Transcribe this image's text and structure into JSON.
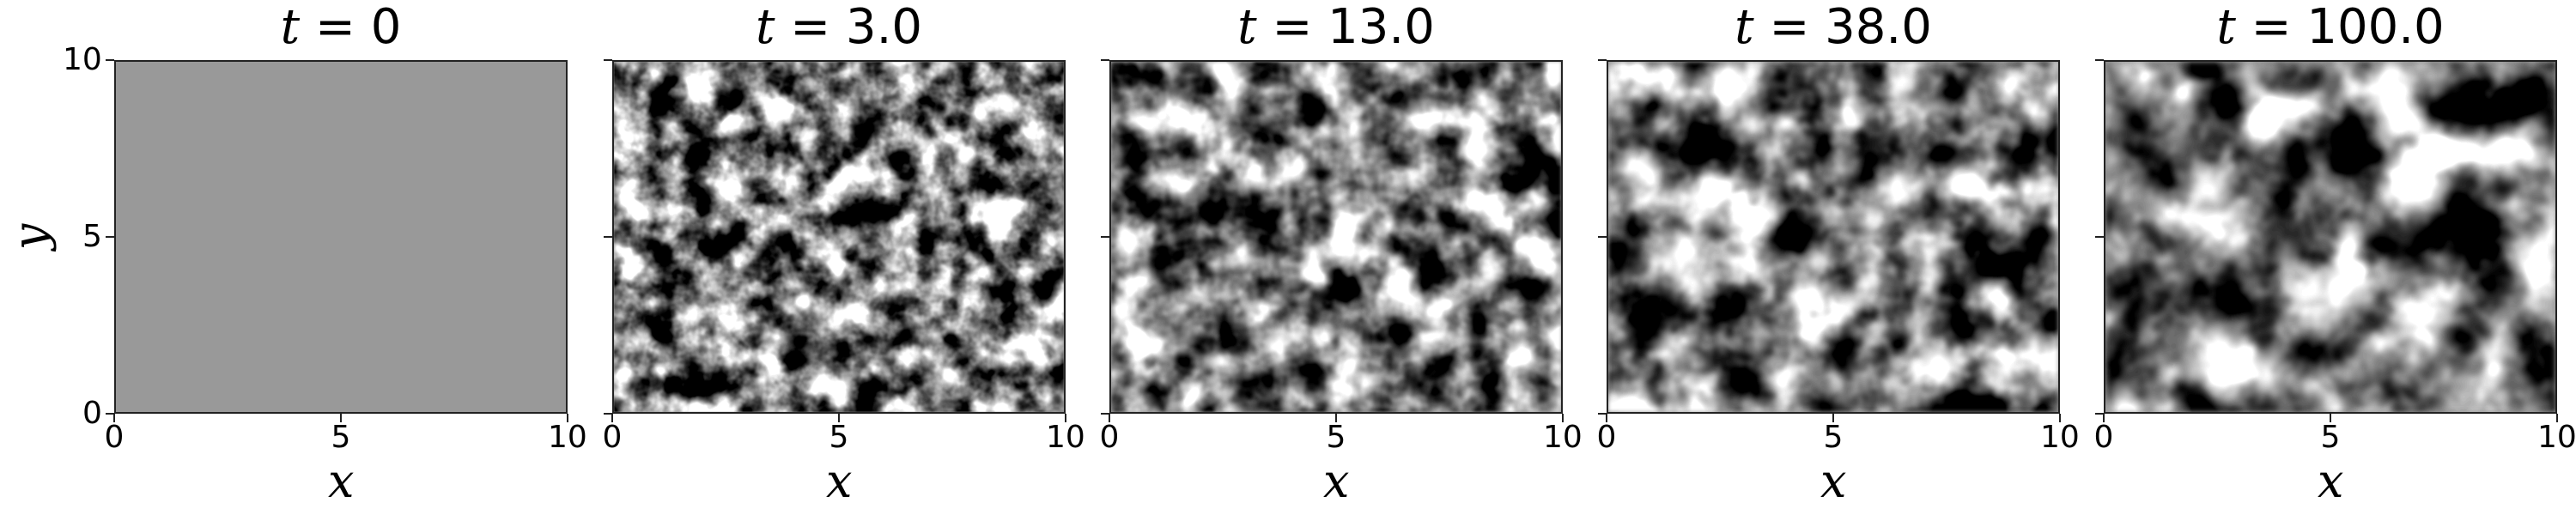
{
  "chart_data": [
    {
      "type": "heatmap",
      "title": {
        "prefix": "t",
        "text": " = 0"
      },
      "t": 0,
      "xlabel": "x",
      "ylabel": "y",
      "xlim": [
        0,
        10
      ],
      "ylim": [
        0,
        10
      ],
      "xticks": [
        "0",
        "5",
        "10"
      ],
      "yticks": [
        "0",
        "5",
        "10"
      ],
      "colormap": "gray",
      "field": "uniform",
      "uniform_color": "#999999"
    },
    {
      "type": "heatmap",
      "title": {
        "prefix": "t",
        "text": " = 3.0"
      },
      "t": 3.0,
      "xlabel": "x",
      "xlim": [
        0,
        10
      ],
      "ylim": [
        0,
        10
      ],
      "xticks": [
        "0",
        "5",
        "10"
      ],
      "colormap": "gray",
      "field": "fine-grained mottled noise"
    },
    {
      "type": "heatmap",
      "title": {
        "prefix": "t",
        "text": " = 13.0"
      },
      "t": 13.0,
      "xlabel": "x",
      "xlim": [
        0,
        10
      ],
      "ylim": [
        0,
        10
      ],
      "xticks": [
        "0",
        "5",
        "10"
      ],
      "colormap": "gray",
      "field": "coarsening domains"
    },
    {
      "type": "heatmap",
      "title": {
        "prefix": "t",
        "text": " = 38.0"
      },
      "t": 38.0,
      "xlabel": "x",
      "xlim": [
        0,
        10
      ],
      "ylim": [
        0,
        10
      ],
      "xticks": [
        "0",
        "5",
        "10"
      ],
      "colormap": "gray",
      "field": "larger domains"
    },
    {
      "type": "heatmap",
      "title": {
        "prefix": "t",
        "text": " = 100.0"
      },
      "t": 100.0,
      "xlabel": "x",
      "xlim": [
        0,
        10
      ],
      "ylim": [
        0,
        10
      ],
      "xticks": [
        "0",
        "5",
        "10"
      ],
      "colormap": "gray",
      "field": "large separated domains"
    }
  ]
}
